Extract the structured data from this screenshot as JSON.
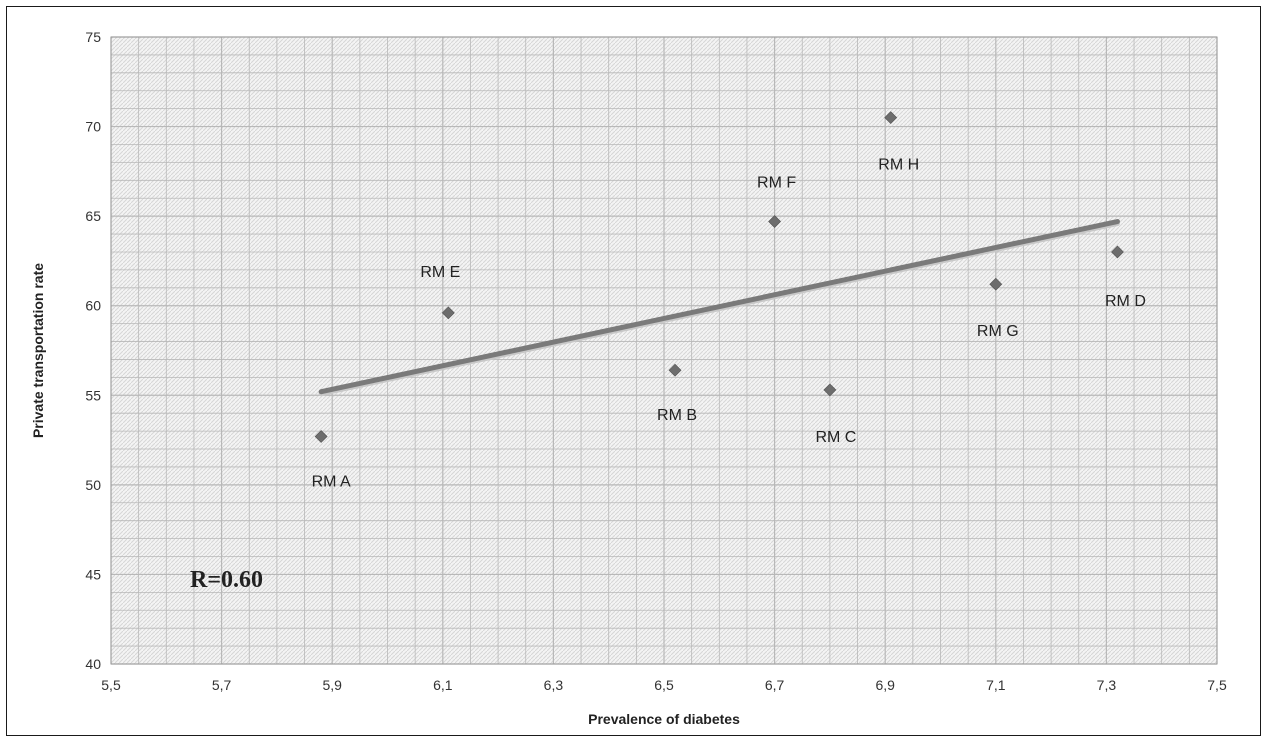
{
  "chart_data": {
    "type": "scatter",
    "xlabel": "Prevalence of diabetes",
    "ylabel": "Private transportation rate",
    "xlim": [
      5.5,
      7.5
    ],
    "ylim": [
      40,
      75
    ],
    "x_ticks": [
      "5,5",
      "5,7",
      "5,9",
      "6,1",
      "6,3",
      "6,5",
      "6,7",
      "6,9",
      "7,1",
      "7,3",
      "7,5"
    ],
    "y_ticks": [
      "40",
      "45",
      "50",
      "55",
      "60",
      "65",
      "70",
      "75"
    ],
    "grid": true,
    "points": [
      {
        "label": "RM A",
        "x": 5.88,
        "y": 52.7
      },
      {
        "label": "RM E",
        "x": 6.11,
        "y": 59.6
      },
      {
        "label": "RM B",
        "x": 6.52,
        "y": 56.4
      },
      {
        "label": "RM F",
        "x": 6.7,
        "y": 64.7
      },
      {
        "label": "RM C",
        "x": 6.8,
        "y": 55.3
      },
      {
        "label": "RM H",
        "x": 6.91,
        "y": 70.5
      },
      {
        "label": "RM G",
        "x": 7.1,
        "y": 61.2
      },
      {
        "label": "RM D",
        "x": 7.32,
        "y": 63.0
      }
    ],
    "trendline": {
      "x": [
        5.88,
        7.32
      ],
      "y": [
        55.2,
        64.7
      ]
    },
    "annotation": "R=0.60",
    "colors": {
      "marker": "#6d6d6d",
      "trendline": "#7a7a7a",
      "grid": "#b8b8b8"
    }
  }
}
